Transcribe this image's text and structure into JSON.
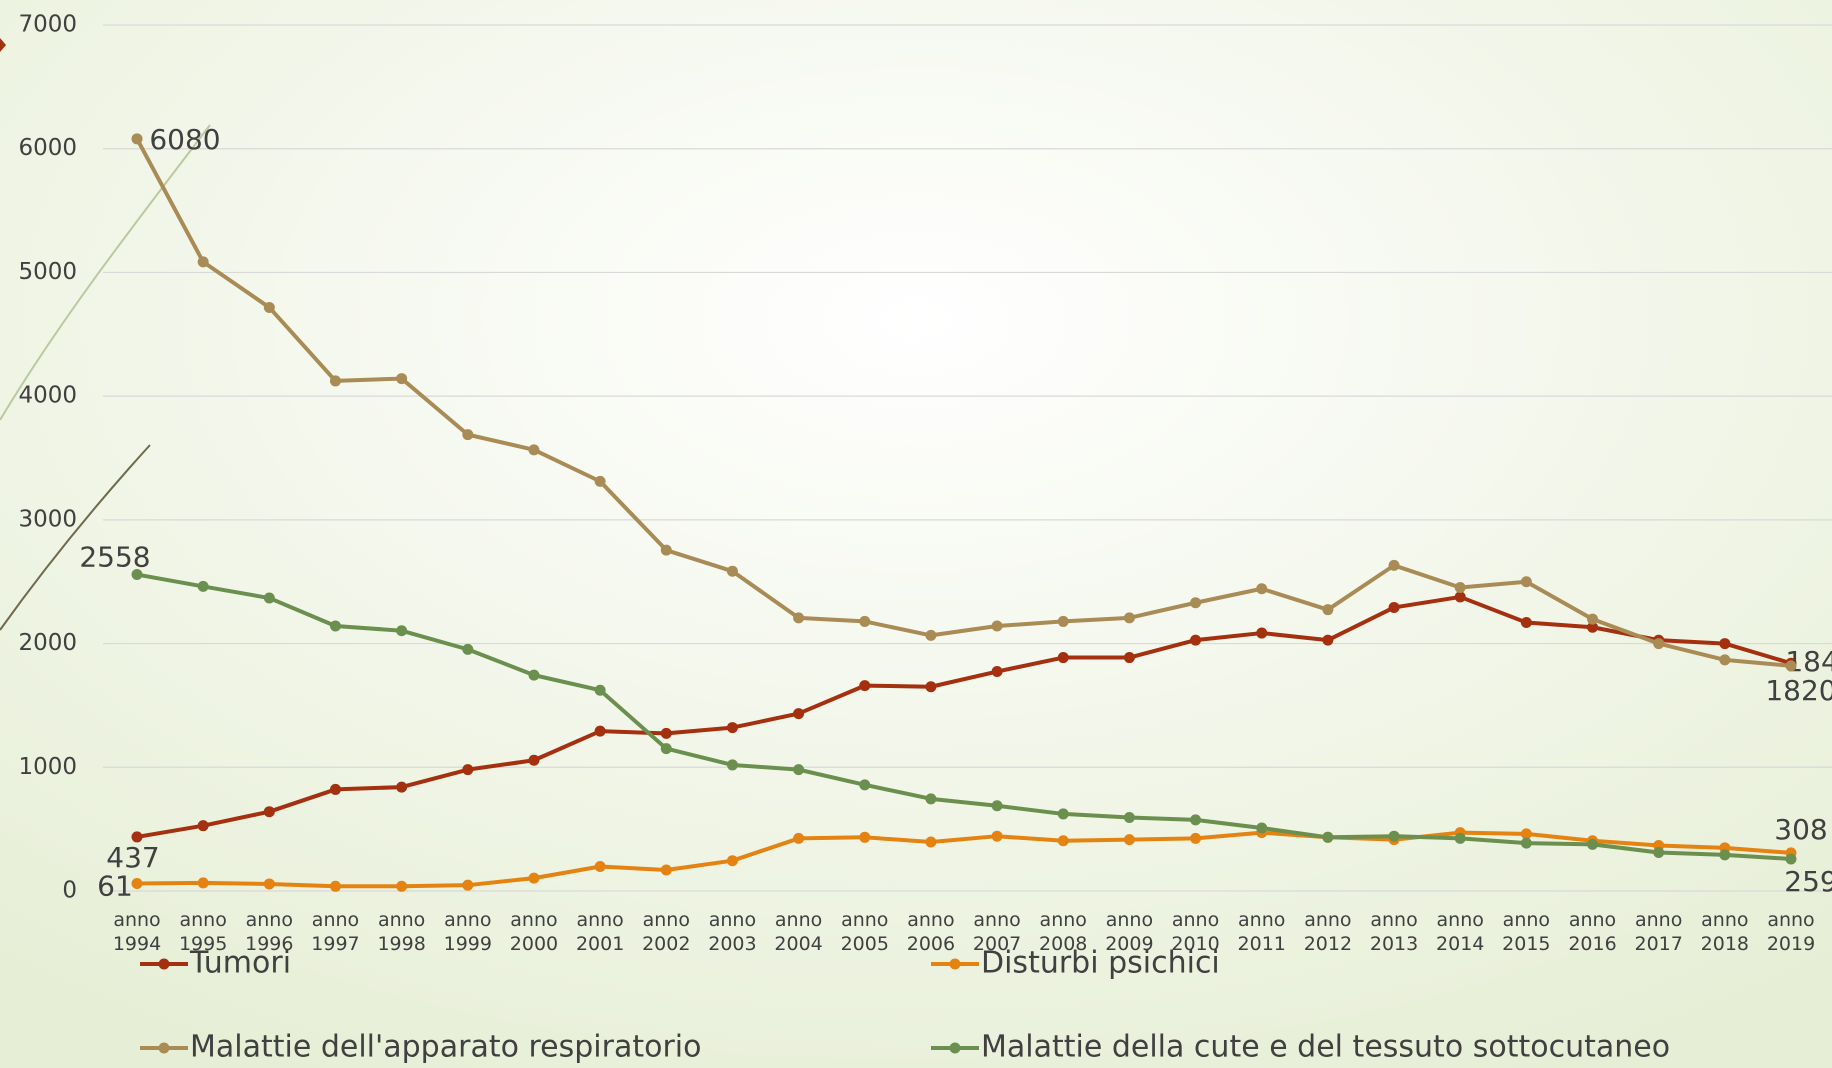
{
  "chart_data": {
    "type": "line",
    "categories": [
      "anno 1994",
      "anno 1995",
      "anno 1996",
      "anno 1997",
      "anno 1998",
      "anno 1999",
      "anno 2000",
      "anno 2001",
      "anno 2002",
      "anno 2003",
      "anno 2004",
      "anno 2005",
      "anno 2006",
      "anno 2007",
      "anno 2008",
      "anno 2009",
      "anno 2010",
      "anno 2011",
      "anno 2012",
      "anno 2013",
      "anno 2014",
      "anno 2015",
      "anno 2016",
      "anno 2017",
      "anno 2018",
      "anno 2019"
    ],
    "series": [
      {
        "name": "Tumori",
        "color": "#a5300f",
        "values": [
          437,
          528,
          641,
          821,
          840,
          981,
          1057,
          1292,
          1274,
          1321,
          1434,
          1660,
          1651,
          1774,
          1887,
          1887,
          2028,
          2085,
          2028,
          2292,
          2377,
          2170,
          2132,
          2028,
          2000,
          1841
        ]
      },
      {
        "name": "Disturbi psichici",
        "color": "#e48312",
        "values": [
          61,
          66,
          57,
          38,
          38,
          47,
          104,
          198,
          170,
          245,
          425,
          434,
          396,
          443,
          406,
          415,
          425,
          472,
          434,
          415,
          472,
          462,
          406,
          368,
          349,
          308
        ]
      },
      {
        "name": "Malattie dell'apparato respiratorio",
        "color": "#a98b55",
        "values": [
          6080,
          5085,
          4717,
          4123,
          4142,
          3689,
          3566,
          3311,
          2755,
          2585,
          2208,
          2179,
          2066,
          2142,
          2179,
          2208,
          2330,
          2443,
          2274,
          2632,
          2453,
          2500,
          2198,
          2000,
          1868,
          1820
        ]
      },
      {
        "name": "Malattie della cute e del tessuto sottocutaneo",
        "color": "#6b8f4e",
        "values": [
          2558,
          2462,
          2368,
          2142,
          2104,
          1953,
          1745,
          1623,
          1151,
          1019,
          981,
          858,
          745,
          689,
          623,
          594,
          575,
          509,
          434,
          443,
          425,
          387,
          377,
          311,
          292,
          259
        ]
      }
    ],
    "ylim": [
      0,
      7000
    ],
    "yticks": [
      0,
      1000,
      2000,
      3000,
      4000,
      5000,
      6000,
      7000
    ],
    "grid": true,
    "legend": "bottom"
  }
}
